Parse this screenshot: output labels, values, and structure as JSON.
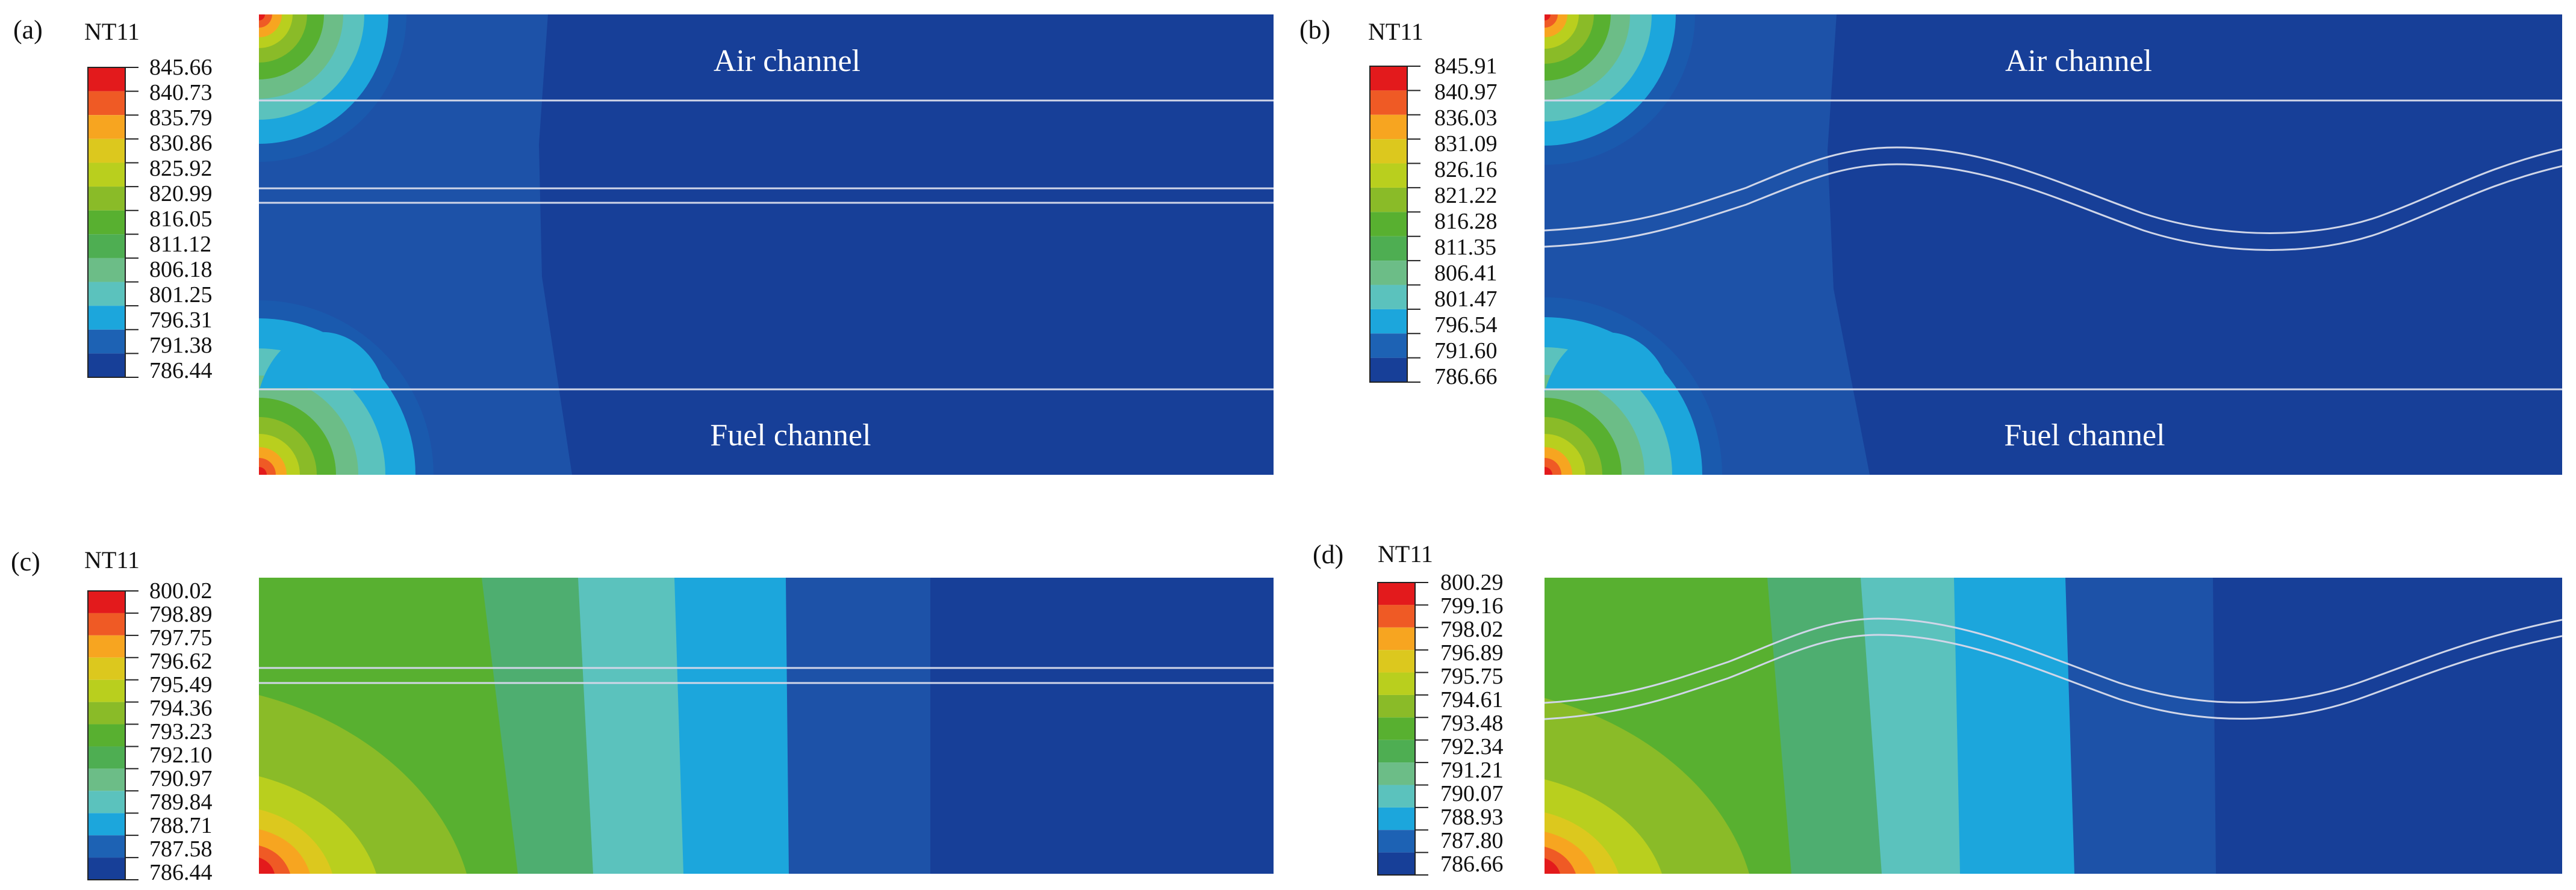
{
  "figure": {
    "panels": [
      {
        "id": "a",
        "label": "(a)",
        "legend_title": "NT11",
        "legend_values": [
          "845.66",
          "840.73",
          "835.79",
          "830.86",
          "825.92",
          "820.99",
          "816.05",
          "811.12",
          "806.18",
          "801.25",
          "796.31",
          "791.38",
          "786.44"
        ],
        "channel_labels": [
          "Air channel",
          "Fuel channel"
        ],
        "interface": "straight",
        "field": "full-cell"
      },
      {
        "id": "b",
        "label": "(b)",
        "legend_title": "NT11",
        "legend_values": [
          "845.91",
          "840.97",
          "836.03",
          "831.09",
          "826.16",
          "821.22",
          "816.28",
          "811.35",
          "806.41",
          "801.47",
          "796.54",
          "791.60",
          "786.66"
        ],
        "channel_labels": [
          "Air channel",
          "Fuel channel"
        ],
        "interface": "wavy",
        "field": "full-cell"
      },
      {
        "id": "c",
        "label": "(c)",
        "legend_title": "NT11",
        "legend_values": [
          "800.02",
          "798.89",
          "797.75",
          "796.62",
          "795.49",
          "794.36",
          "793.23",
          "792.10",
          "790.97",
          "789.84",
          "788.71",
          "787.58",
          "786.44"
        ],
        "channel_labels": [],
        "interface": "straight",
        "field": "electrolyte"
      },
      {
        "id": "d",
        "label": "(d)",
        "legend_title": "NT11",
        "legend_values": [
          "800.29",
          "799.16",
          "798.02",
          "796.89",
          "795.75",
          "794.61",
          "793.48",
          "792.34",
          "791.21",
          "790.07",
          "788.93",
          "787.80",
          "786.66"
        ],
        "channel_labels": [],
        "interface": "wavy",
        "field": "electrolyte"
      }
    ],
    "colormap": [
      "#e31a1c",
      "#ef5a25",
      "#f7a520",
      "#dcc81e",
      "#b9cf1e",
      "#8abb28",
      "#58b030",
      "#4eae52",
      "#6cbd87",
      "#5bc2bd",
      "#1ca6dc",
      "#1d62b4",
      "#173f98"
    ]
  }
}
